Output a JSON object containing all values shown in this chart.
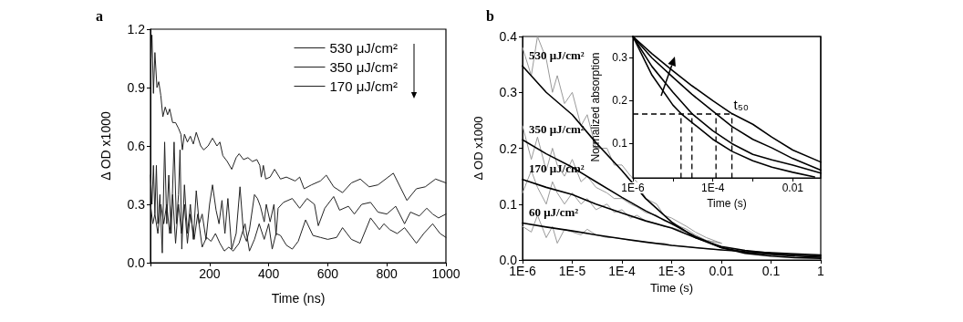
{
  "chart_data": [
    {
      "type": "line",
      "title": "a",
      "xlabel": "Time (ns)",
      "ylabel": "Δ OD x1000",
      "xlim": [
        0,
        1000
      ],
      "xticks": [
        {
          "value": 0,
          "label": null
        },
        200,
        400,
        600,
        800,
        1000
      ],
      "ylim": [
        0,
        1.2
      ],
      "yticks": [
        {
          "value": 0,
          "label": "0.0"
        },
        0.3,
        0.6,
        0.9,
        1.2
      ],
      "legend": "top right",
      "marker": "none",
      "series": [
        {
          "name": "530 μJ/cm²",
          "color": "#222222",
          "x": [
            2,
            5,
            10,
            15,
            22,
            28,
            35,
            42,
            50,
            58,
            65,
            75,
            85,
            95,
            103,
            108,
            115,
            125,
            135,
            145,
            155,
            170,
            180,
            195,
            210,
            225,
            235,
            245,
            260,
            275,
            290,
            300,
            315,
            330,
            345,
            360,
            370,
            375,
            382,
            390,
            405,
            420,
            440,
            460,
            490,
            505,
            520,
            545,
            575,
            595,
            620,
            650,
            680,
            710,
            740,
            770,
            822,
            868,
            900,
            930,
            965,
            1000
          ],
          "values": [
            1.05,
            1.17,
            0.87,
            1.08,
            0.9,
            0.93,
            0.86,
            0.75,
            0.8,
            0.76,
            0.79,
            0.72,
            0.72,
            0.69,
            0.66,
            0.58,
            0.66,
            0.62,
            0.65,
            0.61,
            0.67,
            0.6,
            0.58,
            0.6,
            0.64,
            0.6,
            0.62,
            0.55,
            0.52,
            0.48,
            0.54,
            0.56,
            0.53,
            0.54,
            0.52,
            0.53,
            0.5,
            0.44,
            0.5,
            0.43,
            0.44,
            0.48,
            0.43,
            0.44,
            0.42,
            0.44,
            0.38,
            0.4,
            0.42,
            0.45,
            0.39,
            0.36,
            0.41,
            0.43,
            0.39,
            0.4,
            0.46,
            0.32,
            0.38,
            0.39,
            0.43,
            0.41
          ]
        },
        {
          "name": "350 μJ/cm²",
          "color": "#222222",
          "x": [
            0,
            5,
            10,
            15,
            20,
            25,
            32,
            40,
            48,
            55,
            62,
            70,
            80,
            88,
            95,
            100,
            106,
            115,
            125,
            135,
            145,
            155,
            165,
            175,
            188,
            200,
            210,
            222,
            232,
            242,
            252,
            262,
            275,
            290,
            303,
            315,
            325,
            335,
            352,
            362,
            372,
            385,
            392,
            405,
            418,
            425,
            432,
            450,
            480,
            505,
            530,
            555,
            568,
            590,
            620,
            640,
            670,
            690,
            715,
            745,
            770,
            800,
            830,
            860,
            880,
            910,
            935,
            955,
            975,
            1000
          ],
          "values": [
            0.45,
            0.3,
            0.5,
            0.25,
            0.5,
            0.2,
            0.35,
            0.05,
            0.62,
            0.2,
            0.45,
            0.15,
            0.62,
            0.2,
            0.35,
            0.58,
            0.07,
            0.4,
            0.15,
            0.3,
            0.12,
            0.37,
            0.2,
            0.25,
            0.12,
            0.3,
            0.4,
            0.27,
            0.2,
            0.32,
            0.15,
            0.33,
            0.07,
            0.15,
            0.39,
            0.15,
            0.11,
            0.17,
            0.35,
            0.33,
            0.29,
            0.21,
            0.3,
            0.21,
            0.3,
            0.14,
            0.28,
            0.31,
            0.33,
            0.28,
            0.33,
            0.3,
            0.19,
            0.28,
            0.34,
            0.27,
            0.29,
            0.25,
            0.3,
            0.31,
            0.26,
            0.25,
            0.29,
            0.2,
            0.26,
            0.24,
            0.28,
            0.25,
            0.23,
            0.25
          ]
        },
        {
          "name": "170 μJ/cm²",
          "color": "#222222",
          "x": [
            0,
            8,
            15,
            25,
            35,
            45,
            55,
            65,
            75,
            85,
            95,
            105,
            115,
            125,
            135,
            148,
            160,
            175,
            190,
            205,
            220,
            235,
            250,
            265,
            280,
            300,
            320,
            335,
            352,
            368,
            385,
            400,
            412,
            425,
            440,
            460,
            480,
            500,
            525,
            550,
            575,
            600,
            630,
            650,
            680,
            710,
            745,
            775,
            790,
            810,
            835,
            860,
            880,
            900,
            925,
            955,
            980,
            1000
          ],
          "values": [
            0.3,
            0.2,
            0.25,
            0.15,
            0.3,
            0.2,
            0.3,
            0.15,
            0.35,
            0.1,
            0.3,
            0.15,
            0.3,
            0.1,
            0.25,
            0.12,
            0.25,
            0.08,
            0.13,
            0.11,
            0.15,
            0.1,
            0.06,
            0.08,
            0.06,
            0.1,
            0.2,
            0.06,
            0.12,
            0.2,
            0.12,
            0.2,
            0.07,
            0.15,
            0.14,
            0.09,
            0.07,
            0.11,
            0.22,
            0.14,
            0.13,
            0.12,
            0.13,
            0.18,
            0.12,
            0.1,
            0.23,
            0.17,
            0.2,
            0.17,
            0.15,
            0.18,
            0.14,
            0.1,
            0.15,
            0.2,
            0.15,
            0.13
          ]
        }
      ]
    },
    {
      "type": "line",
      "title": "b",
      "xlabel": "Time (s)",
      "ylabel": "Δ OD x1000",
      "log": "x",
      "xlim": [
        1e-06,
        1
      ],
      "xticks": [
        {
          "value": 1e-06,
          "label": "1E-6"
        },
        {
          "value": 1e-05,
          "label": "1E-5"
        },
        {
          "value": 0.0001,
          "label": "1E-4"
        },
        {
          "value": 0.001,
          "label": "1E-3"
        },
        0.01,
        0.1,
        1
      ],
      "ylim": [
        0,
        0.4
      ],
      "yticks": [
        {
          "value": 0,
          "label": "0.0"
        },
        0.1,
        0.2,
        0.3,
        0.4
      ],
      "legend": false,
      "marker": "none",
      "series": [
        {
          "color": "#999999",
          "x": [
            1e-06,
            1.5e-06,
            2e-06,
            3e-06,
            4e-06,
            5e-06,
            7e-06,
            1e-05,
            1.5e-05,
            2e-05,
            3e-05,
            5e-05,
            7e-05,
            0.0001,
            0.00015,
            0.0002,
            0.0003,
            0.0005,
            0.0007,
            0.001,
            0.002,
            0.003,
            0.005,
            0.01
          ],
          "values": [
            0.38,
            0.33,
            0.4,
            0.36,
            0.3,
            0.33,
            0.28,
            0.3,
            0.24,
            0.26,
            0.2,
            0.2,
            0.17,
            0.17,
            0.15,
            0.14,
            0.11,
            0.1,
            0.08,
            0.075,
            0.06,
            0.05,
            0.04,
            0.03
          ]
        },
        {
          "color": "#999999",
          "x": [
            1e-06,
            1.5e-06,
            2e-06,
            3e-06,
            4e-06,
            5e-06,
            7e-06,
            1e-05,
            1.5e-05,
            2e-05,
            3e-05,
            5e-05,
            7e-05,
            0.0001,
            0.00015,
            0.0002,
            0.0003,
            0.0005,
            0.0007,
            0.001,
            0.002,
            0.003,
            0.005,
            0.01
          ],
          "values": [
            0.24,
            0.18,
            0.22,
            0.16,
            0.2,
            0.17,
            0.15,
            0.18,
            0.14,
            0.15,
            0.13,
            0.12,
            0.11,
            0.11,
            0.1,
            0.095,
            0.085,
            0.08,
            0.07,
            0.066,
            0.055,
            0.045,
            0.035,
            0.03
          ]
        },
        {
          "color": "#999999",
          "x": [
            1e-06,
            1.5e-06,
            2e-06,
            3e-06,
            4e-06,
            5e-06,
            7e-06,
            1e-05,
            1.5e-05,
            2e-05,
            3e-05,
            5e-05,
            7e-05,
            0.0001,
            0.00015,
            0.0002,
            0.0003,
            0.0005,
            0.0007,
            0.001,
            0.002,
            0.003,
            0.005,
            0.01
          ],
          "values": [
            0.12,
            0.16,
            0.13,
            0.1,
            0.14,
            0.12,
            0.1,
            0.12,
            0.1,
            0.11,
            0.09,
            0.1,
            0.085,
            0.09,
            0.075,
            0.08,
            0.07,
            0.065,
            0.06,
            0.058,
            0.05,
            0.042,
            0.035,
            0.03
          ]
        },
        {
          "color": "#999999",
          "x": [
            1e-06,
            1.5e-06,
            2e-06,
            3e-06,
            4e-06,
            5e-06,
            7e-06,
            1e-05,
            1.5e-05,
            2e-05,
            3e-05,
            5e-05,
            7e-05,
            0.0001,
            0.00015,
            0.0002,
            0.0003,
            0.0005,
            0.0007,
            0.001,
            0.002,
            0.003,
            0.005,
            0.01
          ],
          "values": [
            0.06,
            0.05,
            0.08,
            0.04,
            0.06,
            0.03,
            0.055,
            0.05,
            0.045,
            0.055,
            0.045,
            0.04,
            0.04,
            0.038,
            0.035,
            0.034,
            0.032,
            0.03,
            0.03,
            0.026,
            0.024,
            0.022,
            0.02,
            0.018
          ]
        },
        {
          "name": "530 μJ/cm²",
          "color": "#000000",
          "x": [
            1e-06,
            3e-06,
            1e-05,
            3e-05,
            0.0001,
            0.0003,
            0.001,
            0.003,
            0.01,
            0.03,
            0.1,
            0.3,
            1
          ],
          "values": [
            0.347,
            0.3,
            0.26,
            0.21,
            0.16,
            0.11,
            0.068,
            0.04,
            0.022,
            0.012,
            0.007,
            0.004,
            0.003
          ]
        },
        {
          "name": "350 μJ/cm²",
          "color": "#000000",
          "x": [
            1e-06,
            3e-06,
            1e-05,
            3e-05,
            0.0001,
            0.0003,
            0.001,
            0.003,
            0.01,
            0.03,
            0.1,
            0.3,
            1
          ],
          "values": [
            0.215,
            0.19,
            0.166,
            0.14,
            0.112,
            0.088,
            0.065,
            0.042,
            0.022,
            0.014,
            0.01,
            0.007,
            0.005
          ]
        },
        {
          "name": "170 μJ/cm²",
          "color": "#000000",
          "x": [
            1e-06,
            3e-06,
            1e-05,
            3e-05,
            0.0001,
            0.0003,
            0.001,
            0.003,
            0.01,
            0.03,
            0.1,
            0.3,
            1
          ],
          "values": [
            0.144,
            0.13,
            0.117,
            0.1,
            0.084,
            0.07,
            0.057,
            0.04,
            0.024,
            0.017,
            0.012,
            0.009,
            0.007
          ]
        },
        {
          "name": "60 μJ/cm²",
          "color": "#000000",
          "x": [
            1e-06,
            3e-06,
            1e-05,
            3e-05,
            0.0001,
            0.0003,
            0.001,
            0.003,
            0.01,
            0.03,
            0.1,
            0.3,
            1
          ],
          "values": [
            0.066,
            0.059,
            0.052,
            0.045,
            0.038,
            0.032,
            0.026,
            0.022,
            0.018,
            0.015,
            0.013,
            0.011,
            0.009
          ]
        }
      ]
    },
    {
      "type": "line",
      "xlabel": "Time (s)",
      "ylabel": "Normalized absorption",
      "log": "x",
      "xlim": [
        1e-06,
        0.05
      ],
      "xticks": [
        {
          "value": 1e-06,
          "label": "1E-6"
        },
        {
          "value": 1e-05,
          "label": null
        },
        {
          "value": 0.0001,
          "label": "1E-4"
        },
        {
          "value": 0.001,
          "label": null
        },
        0.01
      ],
      "ylim": [
        0.02,
        0.35
      ],
      "yticks": [
        0.1,
        0.2,
        0.3
      ],
      "legend": false,
      "marker": "none",
      "annotations": [
        {
          "text": "t₅₀",
          "x": 0.0003,
          "y": 0.17
        }
      ],
      "series": [
        {
          "color": "#000000",
          "x": [
            1e-06,
            3e-06,
            1e-05,
            3e-05,
            0.0001,
            0.0003,
            0.001,
            0.003,
            0.01,
            0.05
          ],
          "values": [
            0.35,
            0.31,
            0.27,
            0.235,
            0.2,
            0.17,
            0.145,
            0.115,
            0.085,
            0.057
          ]
        },
        {
          "color": "#000000",
          "x": [
            1e-06,
            3e-06,
            1e-05,
            3e-05,
            0.00012,
            0.0003,
            0.001,
            0.003,
            0.01,
            0.05
          ],
          "values": [
            0.35,
            0.3,
            0.255,
            0.215,
            0.17,
            0.14,
            0.11,
            0.09,
            0.065,
            0.038
          ]
        },
        {
          "color": "#000000",
          "x": [
            1e-06,
            3e-06,
            1e-05,
            3e-05,
            0.0001,
            0.0003,
            0.001,
            0.003,
            0.01,
            0.05
          ],
          "values": [
            0.35,
            0.28,
            0.22,
            0.17,
            0.13,
            0.1,
            0.075,
            0.062,
            0.05,
            0.031
          ]
        },
        {
          "color": "#000000",
          "x": [
            1e-06,
            3e-06,
            1e-05,
            1.6e-05,
            0.0001,
            0.0003,
            0.001,
            0.003,
            0.01,
            0.035
          ],
          "values": [
            0.35,
            0.26,
            0.19,
            0.17,
            0.11,
            0.082,
            0.06,
            0.045,
            0.033,
            0.022
          ]
        }
      ]
    }
  ]
}
